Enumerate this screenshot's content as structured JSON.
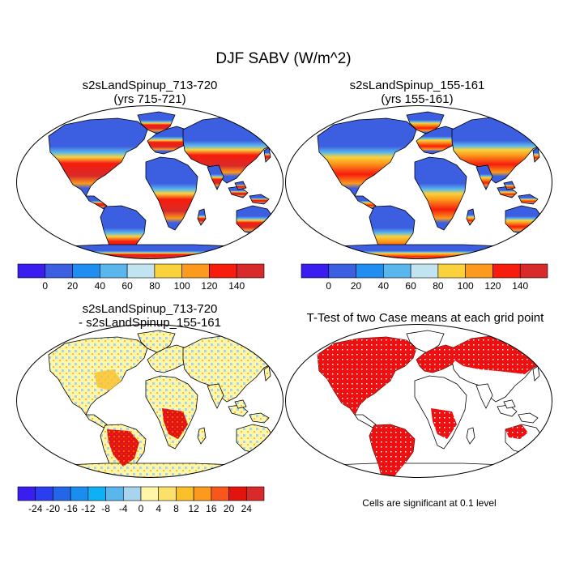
{
  "title": "DJF SABV (W/m^2)",
  "panels": [
    {
      "id": "p1",
      "title_line1": "s2sLandSpinup_713-720",
      "title_line2": "(yrs 715-721)"
    },
    {
      "id": "p2",
      "title_line1": "s2sLandSpinup_155-161",
      "title_line2": "(yrs 155-161)"
    },
    {
      "id": "p3",
      "title_line1": "s2sLandSpinup_713-720",
      "title_line2": "- s2sLandSpinup_155-161"
    },
    {
      "id": "p4",
      "title_line1": "T-Test of two Case means at each grid point",
      "title_line2": ""
    }
  ],
  "colorbar_top": {
    "labels": [
      "0",
      "20",
      "40",
      "60",
      "80",
      "100",
      "120",
      "140"
    ],
    "colors": [
      "#3a1ef0",
      "#3c5ee0",
      "#1f8ef0",
      "#5ab7ee",
      "#c2e4f0",
      "#f9d23c",
      "#fb9a1c",
      "#f71c0c",
      "#d82a2a"
    ]
  },
  "colorbar_bottom": {
    "labels": [
      "-24",
      "-20",
      "-16",
      "-12",
      "-8",
      "-4",
      "0",
      "4",
      "8",
      "12",
      "16",
      "20",
      "24"
    ],
    "colors": [
      "#3a1ef0",
      "#2a3ef0",
      "#2466e8",
      "#1a8ef0",
      "#0eb2f4",
      "#5ab7ee",
      "#a8d4f0",
      "#fff6a8",
      "#fbe06a",
      "#f9c02a",
      "#fb9a1c",
      "#f8561a",
      "#e3140e",
      "#d82a2a"
    ]
  },
  "significance_note": "Cells are significant at 0.1 level",
  "legend_colors": {
    "ocean": "#ffffff",
    "coast": "#000000",
    "significant": "#ee1010"
  }
}
